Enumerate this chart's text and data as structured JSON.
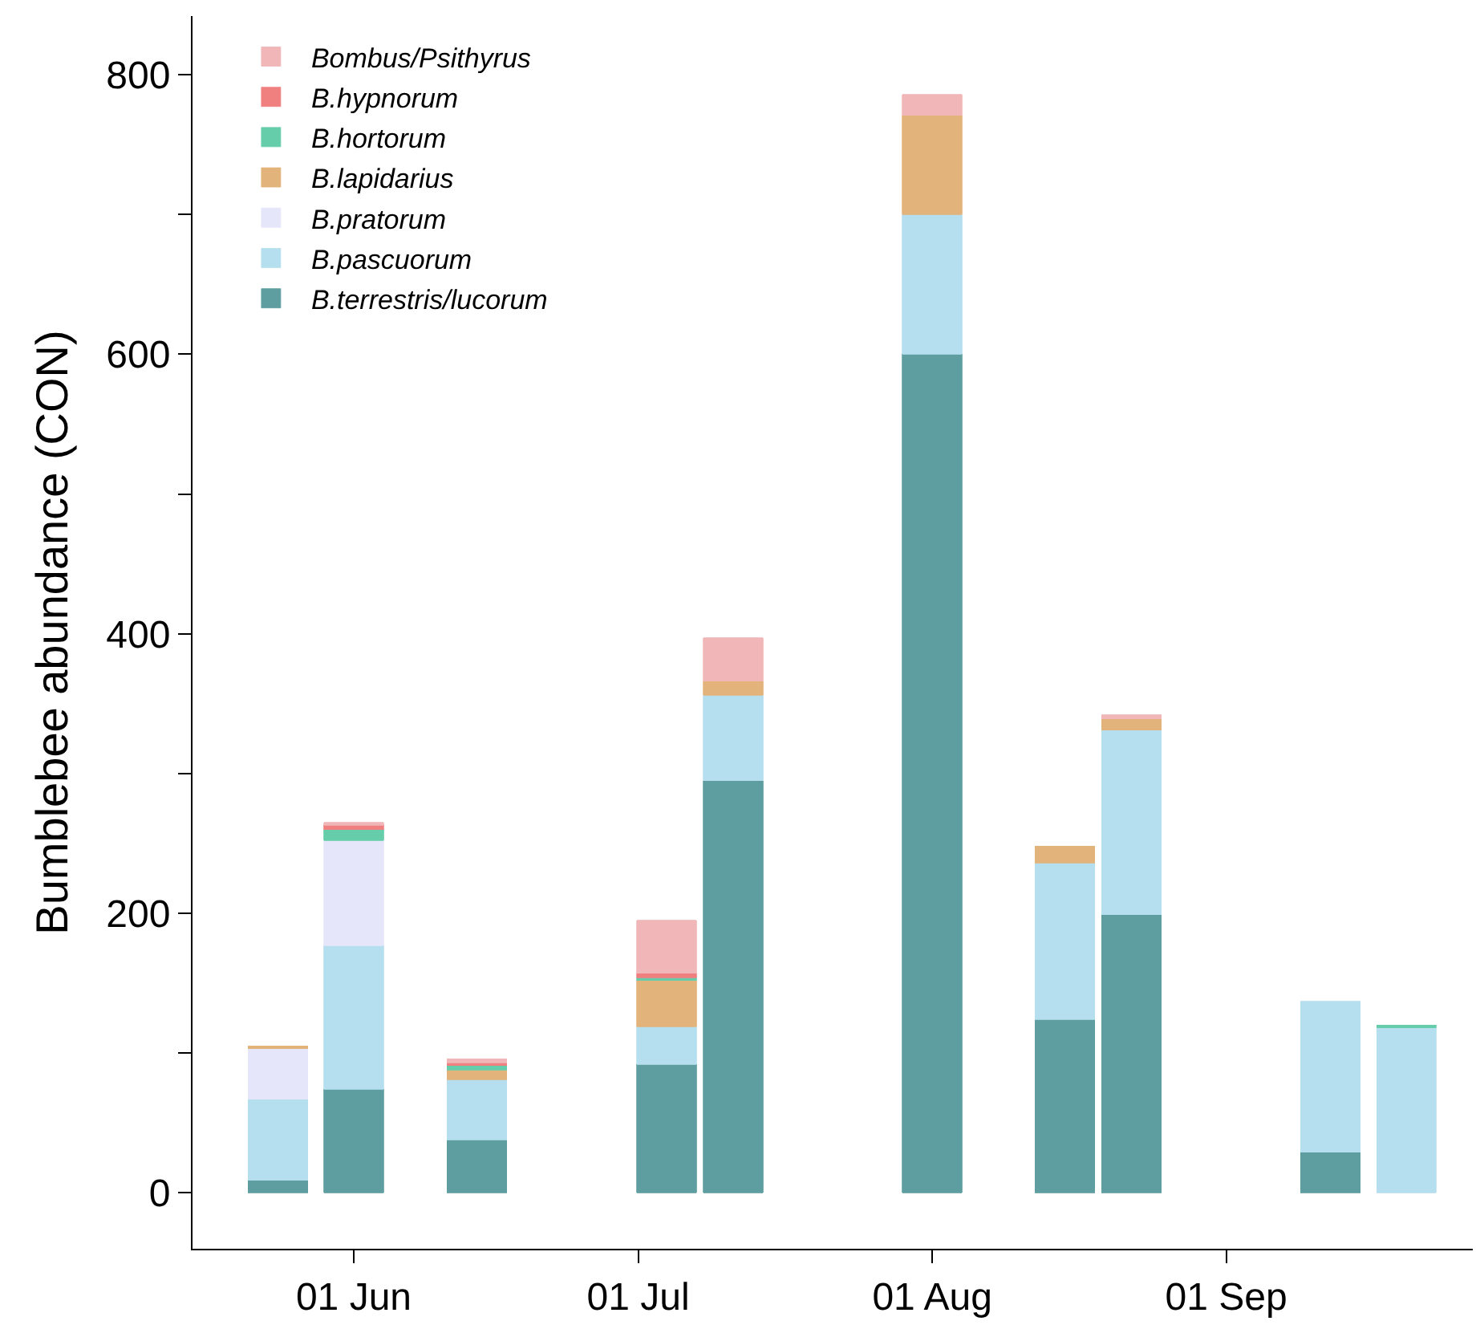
{
  "chart_data": {
    "type": "bar",
    "stacked": true,
    "ylabel": "Bumblebee abundance (CON)",
    "x": [
      "--05-24",
      "--06-01",
      "--06-14",
      "--07-04",
      "--07-11",
      "--08-01",
      "--08-15",
      "--08-22",
      "--09-12",
      "--09-20"
    ],
    "series": [
      {
        "name": "B.terrestris/lucorum",
        "color": "#5f9ea0",
        "values": [
          9,
          74,
          38,
          92,
          295,
          600,
          124,
          199,
          29,
          null
        ]
      },
      {
        "name": "B.pascuorum",
        "color": "#b5dfee",
        "values": [
          58,
          103,
          43,
          27,
          61,
          100,
          112,
          132,
          108,
          118
        ]
      },
      {
        "name": "B.pratorum",
        "color": "#e6e6fa",
        "values": [
          36,
          75,
          null,
          null,
          null,
          null,
          null,
          null,
          null,
          null
        ]
      },
      {
        "name": "B.lapidarius",
        "color": "#e2b37a",
        "values": [
          2,
          null,
          7,
          33,
          10,
          71,
          12,
          8,
          null,
          null
        ]
      },
      {
        "name": "B.hortorum",
        "color": "#66cdaa",
        "values": [
          null,
          8,
          3,
          2,
          null,
          null,
          null,
          null,
          null,
          2
        ]
      },
      {
        "name": "B.hypnorum",
        "color": "#f08080",
        "values": [
          null,
          3,
          2,
          3,
          null,
          null,
          null,
          null,
          null,
          null
        ]
      },
      {
        "name": "Bombus/Psithyrus",
        "color": "#f0b6b8",
        "values": [
          null,
          2,
          3,
          38,
          31,
          15,
          null,
          3,
          null,
          null
        ]
      }
    ],
    "xlim": [
      "--05-15",
      "--09-27"
    ],
    "xticks": [
      {
        "value": "--06-01",
        "label": "01 Jun"
      },
      {
        "value": "--07-01",
        "label": "01 Jul"
      },
      {
        "value": "--08-01",
        "label": "01 Aug"
      },
      {
        "value": "--09-01",
        "label": "01 Sep"
      }
    ],
    "ylim": [
      -40,
      842
    ],
    "yticks": [
      0,
      {
        "value": 100,
        "label": null
      },
      200,
      {
        "value": 300,
        "label": null
      },
      400,
      {
        "value": 500,
        "label": null
      },
      600,
      {
        "value": 700,
        "label": null
      },
      800
    ],
    "legend": "top left"
  }
}
